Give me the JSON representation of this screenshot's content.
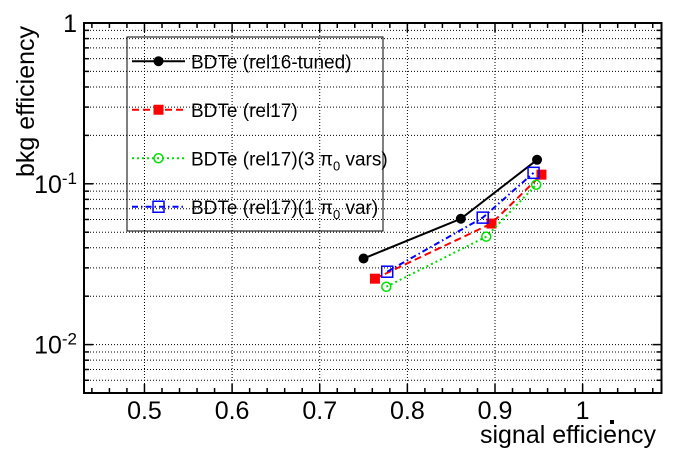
{
  "figure": {
    "background": "#ffffff",
    "frame_color": "#000000",
    "grid_color": "#000000"
  },
  "chart_data": {
    "type": "line",
    "title": "",
    "xlabel": "signal efficiency",
    "ylabel": "bkg efficiency",
    "xscale": "linear",
    "yscale": "log",
    "xlim": [
      0.431,
      1.09
    ],
    "ylim": [
      0.005,
      1.0
    ],
    "grid": "major-x, all-log-y, dotted",
    "legend_position": "top-left",
    "x_major_ticks": [
      0.5,
      0.6,
      0.7,
      0.8,
      0.9,
      1.0
    ],
    "x_tick_labels": [
      "0.5",
      "0.6",
      "0.7",
      "0.8",
      "0.9",
      "1"
    ],
    "x_minor_step": 0.02,
    "y_major_ticks": [
      1,
      0.1,
      0.01
    ],
    "y_tick_labels": [
      {
        "mant": "1",
        "exp": null
      },
      {
        "mant": "10",
        "exp": "-1"
      },
      {
        "mant": "10",
        "exp": "-2"
      }
    ],
    "series": [
      {
        "name": "BDTe (rel16-tuned)",
        "label_parts": {
          "pre": "BDTe (rel16-tuned)"
        },
        "color": "#000000",
        "line_style": "solid",
        "marker": "filled-circle",
        "points": [
          [
            0.75,
            0.0343
          ],
          [
            0.861,
            0.0606
          ],
          [
            0.948,
            0.141
          ]
        ]
      },
      {
        "name": "BDTe (rel17)",
        "label_parts": {
          "pre": "BDTe (rel17)"
        },
        "color": "#ff0000",
        "line_style": "dashed",
        "marker": "filled-square",
        "points": [
          [
            0.763,
            0.0257
          ],
          [
            0.896,
            0.0566
          ],
          [
            0.953,
            0.114
          ]
        ]
      },
      {
        "name": "BDTe (rel17)(3 π_0 vars)",
        "label_parts": {
          "pre": "BDTe (rel17)(3 ",
          "pi": "π",
          "sub": "0",
          "post": " vars)"
        },
        "color": "#00e000",
        "line_style": "dotted",
        "marker": "open-circle",
        "points": [
          [
            0.776,
            0.0229
          ],
          [
            0.89,
            0.0469
          ],
          [
            0.947,
            0.0986
          ]
        ]
      },
      {
        "name": "BDTe (rel17)(1 π_0 var)",
        "label_parts": {
          "pre": "BDTe (rel17)(1 ",
          "pi": "π",
          "sub": "0",
          "post": " var)"
        },
        "color": "#0000ff",
        "line_style": "dash-dot",
        "marker": "open-square",
        "points": [
          [
            0.777,
            0.0284
          ],
          [
            0.886,
            0.0616
          ],
          [
            0.944,
            0.117
          ]
        ]
      }
    ]
  }
}
